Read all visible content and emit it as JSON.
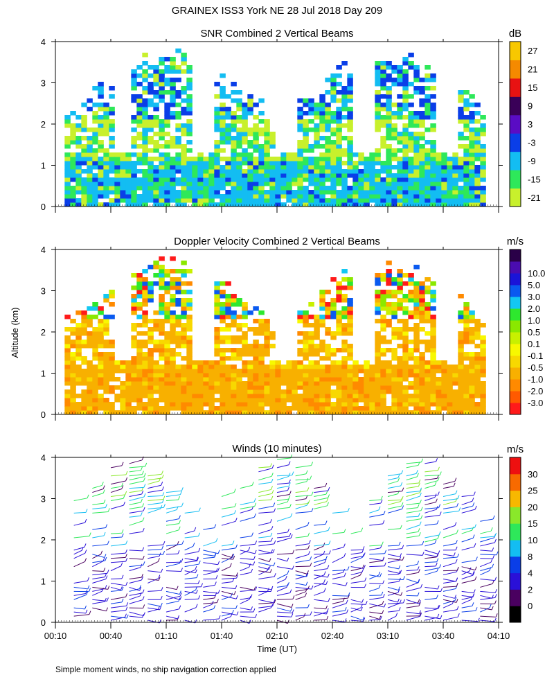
{
  "figure": {
    "title": "GRAINEX ISS3 York NE  28 Jul 2018 Day 209",
    "footnote": "Simple moment winds, no ship navigation correction applied",
    "ylabel": "Altitude (km)",
    "xlabel": "Time (UT)"
  },
  "chart_data": [
    {
      "id": "snr",
      "type": "heatmap",
      "title": "SNR Combined 2 Vertical Beams",
      "ylim": [
        0,
        4
      ],
      "yticks": [
        "0",
        "1",
        "2",
        "3",
        "4"
      ],
      "colorbar": {
        "unit": "dB",
        "colors": [
          "#c8f02c",
          "#2ee85a",
          "#13bdf2",
          "#0a3ee8",
          "#5a0cc4",
          "#3a0058",
          "#e81212",
          "#f58a00",
          "#f8c800"
        ],
        "labels": [
          "-21",
          "-15",
          "-9",
          "-3",
          "3",
          "9",
          "15",
          "21",
          "27"
        ]
      }
    },
    {
      "id": "doppler",
      "type": "heatmap",
      "title": "Doppler Velocity Combined 2 Vertical Beams",
      "ylim": [
        0,
        4
      ],
      "yticks": [
        "0",
        "1",
        "2",
        "3",
        "4"
      ],
      "colorbar": {
        "unit": "m/s",
        "colors": [
          "#ff1a1a",
          "#ff5a00",
          "#ff8a00",
          "#f8b000",
          "#f8d800",
          "#f8f800",
          "#c8f000",
          "#8ae800",
          "#2ee82e",
          "#13c8f2",
          "#0a5af0",
          "#1a14d8",
          "#4a0cb0",
          "#2a0048"
        ],
        "labels": [
          "-3.0",
          "-2.0",
          "-1.0",
          "-0.5",
          "-0.1",
          "0.1",
          "0.5",
          "1.0",
          "2.0",
          "3.0",
          "5.0",
          "10.0"
        ]
      }
    },
    {
      "id": "winds",
      "type": "scatter",
      "title": "Winds (10 minutes)",
      "ylim": [
        0,
        4
      ],
      "yticks": [
        "0",
        "1",
        "2",
        "3",
        "4"
      ],
      "xlim": [
        "00:10",
        "04:10"
      ],
      "xticks": [
        "00:10",
        "00:40",
        "01:10",
        "01:40",
        "02:10",
        "02:40",
        "03:10",
        "03:40",
        "04:10"
      ],
      "colorbar": {
        "unit": "m/s",
        "colors": [
          "#000000",
          "#4a0060",
          "#2a10d8",
          "#0a3ee8",
          "#13bdf2",
          "#2ee85a",
          "#8ae82a",
          "#f8b800",
          "#f86a00",
          "#ee1010"
        ],
        "labels": [
          "0",
          "2",
          "4",
          "8",
          "10",
          "15",
          "20",
          "25",
          "30"
        ]
      }
    }
  ]
}
